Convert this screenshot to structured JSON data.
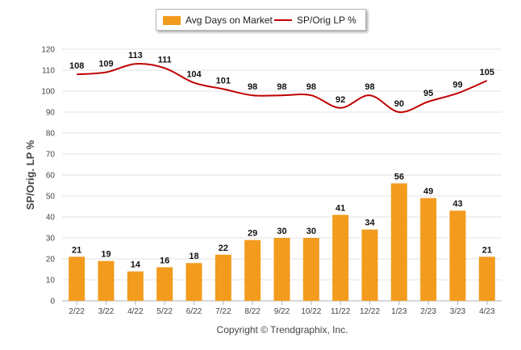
{
  "chart_data": {
    "type": "bar",
    "categories": [
      "2/22",
      "3/22",
      "4/22",
      "5/22",
      "6/22",
      "7/22",
      "8/22",
      "9/22",
      "10/22",
      "11/22",
      "12/22",
      "1/23",
      "2/23",
      "3/23",
      "4/23"
    ],
    "series": [
      {
        "name": "Avg Days on Market",
        "type": "bar",
        "values": [
          21,
          19,
          14,
          16,
          18,
          22,
          29,
          30,
          30,
          41,
          34,
          56,
          49,
          43,
          21
        ]
      },
      {
        "name": "SP/Orig LP %",
        "type": "line",
        "values": [
          108,
          109,
          113,
          111,
          104,
          101,
          98,
          98,
          98,
          92,
          98,
          90,
          95,
          99,
          105
        ]
      }
    ],
    "ylabel": "SP/Orig. LP %",
    "ylim": [
      0,
      120
    ],
    "yticks": [
      0,
      10,
      20,
      30,
      40,
      50,
      60,
      70,
      80,
      90,
      100,
      110,
      120
    ],
    "grid": true,
    "legend": "top-center"
  },
  "colors": {
    "bar": "#F29B1D",
    "line": "#C00000"
  },
  "footer": {
    "copyright": "Copyright © Trendgraphix, Inc."
  }
}
